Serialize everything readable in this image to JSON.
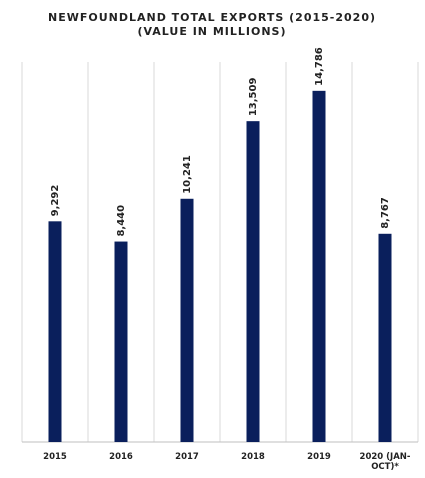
{
  "chart_data": {
    "type": "bar",
    "title_lines": [
      "NEWFOUNDLAND TOTAL EXPORTS (2015-2020)",
      "(VALUE IN MILLIONS)"
    ],
    "categories": [
      [
        "2015"
      ],
      [
        "2016"
      ],
      [
        "2017"
      ],
      [
        "2018"
      ],
      [
        "2019"
      ],
      [
        "2020 (JAN-",
        "OCT)*"
      ]
    ],
    "values": [
      9292,
      8440,
      10241,
      13509,
      14786,
      8767
    ],
    "data_labels": [
      "9,292",
      "8,440",
      "10,241",
      "13,509",
      "14,786",
      "8,767"
    ],
    "ylim": [
      0,
      16000
    ],
    "grid": "vertical",
    "legend": "none",
    "bar_color": "#0a1f5c"
  }
}
